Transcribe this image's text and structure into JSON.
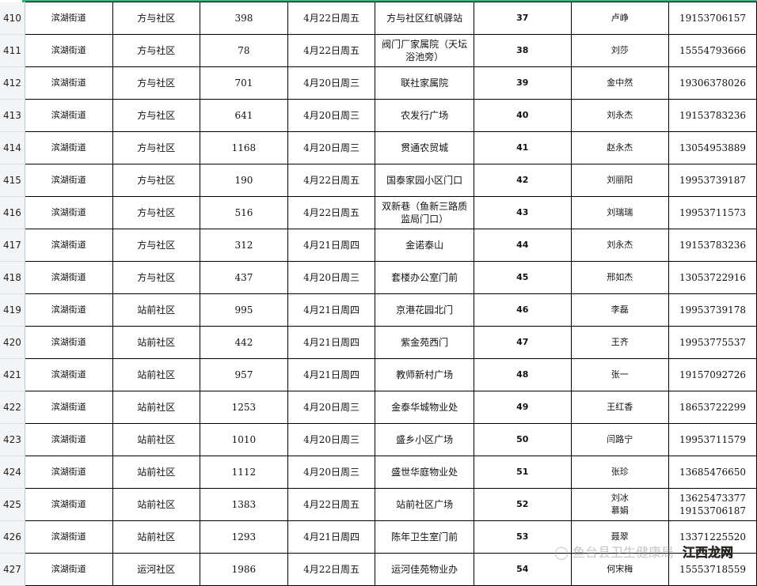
{
  "columns": [
    "row",
    "street",
    "community",
    "count",
    "date",
    "location",
    "site_no",
    "contact",
    "phone"
  ],
  "rows": [
    {
      "row": "410",
      "street": "滨湖街道",
      "community": "方与社区",
      "count": "398",
      "date": "4月22日周五",
      "location": "方与社区红帆驿站",
      "site_no": "37",
      "contact": "卢峥",
      "phone": "19153706157"
    },
    {
      "row": "411",
      "street": "滨湖街道",
      "community": "方与社区",
      "count": "78",
      "date": "4月22日周五",
      "location": "阀门厂家属院（天坛浴池旁）",
      "site_no": "38",
      "contact": "刘莎",
      "phone": "15554793666"
    },
    {
      "row": "412",
      "street": "滨湖街道",
      "community": "方与社区",
      "count": "701",
      "date": "4月20日周三",
      "location": "联社家属院",
      "site_no": "39",
      "contact": "金中然",
      "phone": "19306378026"
    },
    {
      "row": "413",
      "street": "滨湖街道",
      "community": "方与社区",
      "count": "641",
      "date": "4月20日周三",
      "location": "农发行广场",
      "site_no": "40",
      "contact": "刘永杰",
      "phone": "19153783236"
    },
    {
      "row": "414",
      "street": "滨湖街道",
      "community": "方与社区",
      "count": "1168",
      "date": "4月20日周三",
      "location": "贯通农贸城",
      "site_no": "41",
      "contact": "赵永杰",
      "phone": "13054953889"
    },
    {
      "row": "415",
      "street": "滨湖街道",
      "community": "方与社区",
      "count": "190",
      "date": "4月22日周五",
      "location": "国泰家园小区门口",
      "site_no": "42",
      "contact": "刘丽阳",
      "phone": "19953739187"
    },
    {
      "row": "416",
      "street": "滨湖街道",
      "community": "方与社区",
      "count": "516",
      "date": "4月22日周五",
      "location": "双新巷（鱼新三路质监局门口）",
      "site_no": "43",
      "contact": "刘瑞瑞",
      "phone": "19953711573"
    },
    {
      "row": "417",
      "street": "滨湖街道",
      "community": "方与社区",
      "count": "312",
      "date": "4月21日周四",
      "location": "金诺泰山",
      "site_no": "44",
      "contact": "刘永杰",
      "phone": "19153783236"
    },
    {
      "row": "418",
      "street": "滨湖街道",
      "community": "方与社区",
      "count": "437",
      "date": "4月20日周三",
      "location": "套楼办公室门前",
      "site_no": "45",
      "contact": "邢如杰",
      "phone": "13053722916"
    },
    {
      "row": "419",
      "street": "滨湖街道",
      "community": "站前社区",
      "count": "995",
      "date": "4月21日周四",
      "location": "京港花园北门",
      "site_no": "46",
      "contact": "李磊",
      "phone": "19953739178"
    },
    {
      "row": "420",
      "street": "滨湖街道",
      "community": "站前社区",
      "count": "442",
      "date": "4月21日周四",
      "location": "紫金苑西门",
      "site_no": "47",
      "contact": "王齐",
      "phone": "19953775537"
    },
    {
      "row": "421",
      "street": "滨湖街道",
      "community": "站前社区",
      "count": "957",
      "date": "4月21日周四",
      "location": "教师新村广场",
      "site_no": "48",
      "contact": "张一",
      "phone": "19157092726"
    },
    {
      "row": "422",
      "street": "滨湖街道",
      "community": "站前社区",
      "count": "1253",
      "date": "4月20日周三",
      "location": "金泰华城物业处",
      "site_no": "49",
      "contact": "王红香",
      "phone": "18653722299"
    },
    {
      "row": "423",
      "street": "滨湖街道",
      "community": "站前社区",
      "count": "1010",
      "date": "4月20日周三",
      "location": "盛乡小区广场",
      "site_no": "50",
      "contact": "闫路宁",
      "phone": "19953711579"
    },
    {
      "row": "424",
      "street": "滨湖街道",
      "community": "站前社区",
      "count": "1112",
      "date": "4月20日周三",
      "location": "盛世华庭物业处",
      "site_no": "51",
      "contact": "张珍",
      "phone": "13685476650"
    },
    {
      "row": "425",
      "street": "滨湖街道",
      "community": "站前社区",
      "count": "1383",
      "date": "4月22日周五",
      "location": "站前社区广场",
      "site_no": "52",
      "contact": "刘冰\n慕娟",
      "phone": "13625473377\n19153706187"
    },
    {
      "row": "426",
      "street": "滨湖街道",
      "community": "站前社区",
      "count": "1293",
      "date": "4月21日周四",
      "location": "陈年卫生室门前",
      "site_no": "53",
      "contact": "聂翠",
      "phone": "13371225520"
    },
    {
      "row": "427",
      "street": "滨湖街道",
      "community": "运河社区",
      "count": "1986",
      "date": "4月22日周五",
      "location": "运河佳苑物业办",
      "site_no": "54",
      "contact": "何宋梅",
      "phone": "15553718559"
    }
  ],
  "watermark": {
    "account": "鱼台县卫生健康局",
    "site_logo": "江西龙网"
  },
  "colors": {
    "selection_border": "#2bb673",
    "grid": "#000000",
    "row_header_bg": "#f3f4f6"
  }
}
